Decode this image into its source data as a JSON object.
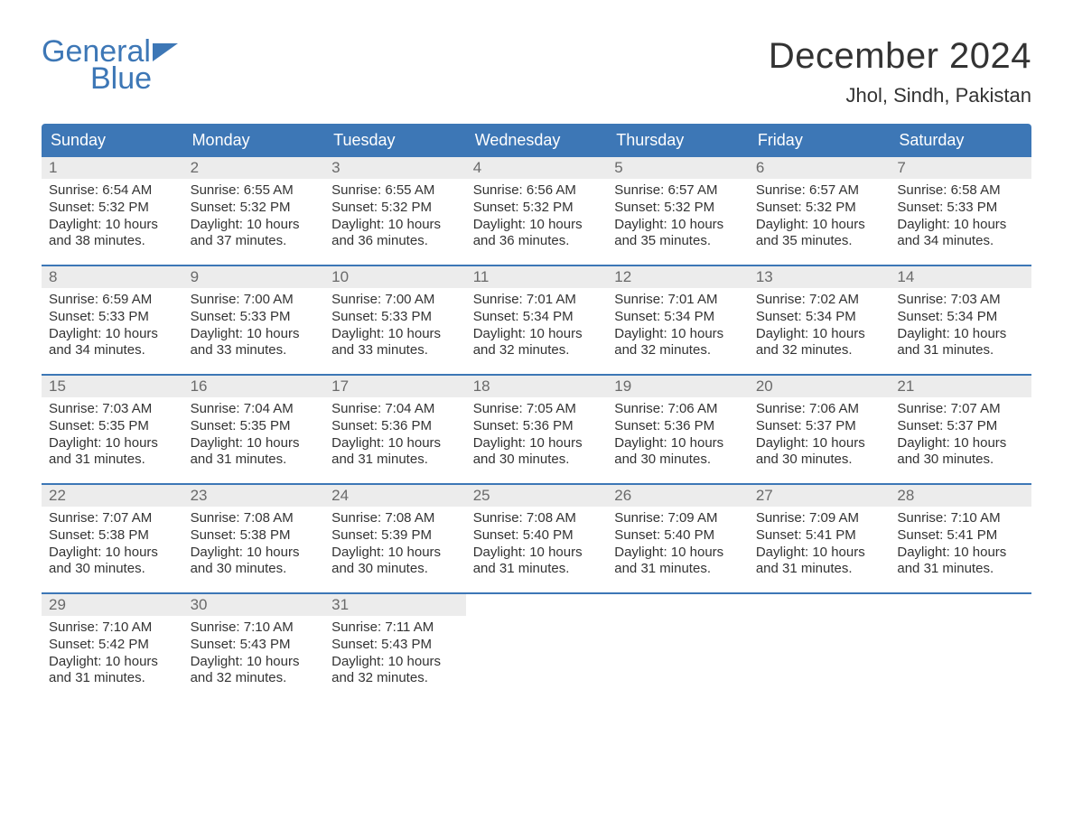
{
  "logo": {
    "line1": "General",
    "line2": "Blue",
    "icon_color": "#3d77b6"
  },
  "header": {
    "month_title": "December 2024",
    "location": "Jhol, Sindh, Pakistan"
  },
  "colors": {
    "brand": "#3d77b6",
    "header_bg": "#3d77b6",
    "header_text": "#ffffff",
    "daynum_bg": "#ececec",
    "daynum_text": "#6a6a6a",
    "body_text": "#333333",
    "row_divider": "#3d77b6"
  },
  "typography": {
    "month_title_fontsize": 40,
    "location_fontsize": 22,
    "weekday_fontsize": 18,
    "daynum_fontsize": 17,
    "daytext_fontsize": 15
  },
  "calendar": {
    "weekday_labels": [
      "Sunday",
      "Monday",
      "Tuesday",
      "Wednesday",
      "Thursday",
      "Friday",
      "Saturday"
    ],
    "weeks": [
      [
        {
          "day": "1",
          "sunrise": "Sunrise: 6:54 AM",
          "sunset": "Sunset: 5:32 PM",
          "dl1": "Daylight: 10 hours",
          "dl2": "and 38 minutes."
        },
        {
          "day": "2",
          "sunrise": "Sunrise: 6:55 AM",
          "sunset": "Sunset: 5:32 PM",
          "dl1": "Daylight: 10 hours",
          "dl2": "and 37 minutes."
        },
        {
          "day": "3",
          "sunrise": "Sunrise: 6:55 AM",
          "sunset": "Sunset: 5:32 PM",
          "dl1": "Daylight: 10 hours",
          "dl2": "and 36 minutes."
        },
        {
          "day": "4",
          "sunrise": "Sunrise: 6:56 AM",
          "sunset": "Sunset: 5:32 PM",
          "dl1": "Daylight: 10 hours",
          "dl2": "and 36 minutes."
        },
        {
          "day": "5",
          "sunrise": "Sunrise: 6:57 AM",
          "sunset": "Sunset: 5:32 PM",
          "dl1": "Daylight: 10 hours",
          "dl2": "and 35 minutes."
        },
        {
          "day": "6",
          "sunrise": "Sunrise: 6:57 AM",
          "sunset": "Sunset: 5:32 PM",
          "dl1": "Daylight: 10 hours",
          "dl2": "and 35 minutes."
        },
        {
          "day": "7",
          "sunrise": "Sunrise: 6:58 AM",
          "sunset": "Sunset: 5:33 PM",
          "dl1": "Daylight: 10 hours",
          "dl2": "and 34 minutes."
        }
      ],
      [
        {
          "day": "8",
          "sunrise": "Sunrise: 6:59 AM",
          "sunset": "Sunset: 5:33 PM",
          "dl1": "Daylight: 10 hours",
          "dl2": "and 34 minutes."
        },
        {
          "day": "9",
          "sunrise": "Sunrise: 7:00 AM",
          "sunset": "Sunset: 5:33 PM",
          "dl1": "Daylight: 10 hours",
          "dl2": "and 33 minutes."
        },
        {
          "day": "10",
          "sunrise": "Sunrise: 7:00 AM",
          "sunset": "Sunset: 5:33 PM",
          "dl1": "Daylight: 10 hours",
          "dl2": "and 33 minutes."
        },
        {
          "day": "11",
          "sunrise": "Sunrise: 7:01 AM",
          "sunset": "Sunset: 5:34 PM",
          "dl1": "Daylight: 10 hours",
          "dl2": "and 32 minutes."
        },
        {
          "day": "12",
          "sunrise": "Sunrise: 7:01 AM",
          "sunset": "Sunset: 5:34 PM",
          "dl1": "Daylight: 10 hours",
          "dl2": "and 32 minutes."
        },
        {
          "day": "13",
          "sunrise": "Sunrise: 7:02 AM",
          "sunset": "Sunset: 5:34 PM",
          "dl1": "Daylight: 10 hours",
          "dl2": "and 32 minutes."
        },
        {
          "day": "14",
          "sunrise": "Sunrise: 7:03 AM",
          "sunset": "Sunset: 5:34 PM",
          "dl1": "Daylight: 10 hours",
          "dl2": "and 31 minutes."
        }
      ],
      [
        {
          "day": "15",
          "sunrise": "Sunrise: 7:03 AM",
          "sunset": "Sunset: 5:35 PM",
          "dl1": "Daylight: 10 hours",
          "dl2": "and 31 minutes."
        },
        {
          "day": "16",
          "sunrise": "Sunrise: 7:04 AM",
          "sunset": "Sunset: 5:35 PM",
          "dl1": "Daylight: 10 hours",
          "dl2": "and 31 minutes."
        },
        {
          "day": "17",
          "sunrise": "Sunrise: 7:04 AM",
          "sunset": "Sunset: 5:36 PM",
          "dl1": "Daylight: 10 hours",
          "dl2": "and 31 minutes."
        },
        {
          "day": "18",
          "sunrise": "Sunrise: 7:05 AM",
          "sunset": "Sunset: 5:36 PM",
          "dl1": "Daylight: 10 hours",
          "dl2": "and 30 minutes."
        },
        {
          "day": "19",
          "sunrise": "Sunrise: 7:06 AM",
          "sunset": "Sunset: 5:36 PM",
          "dl1": "Daylight: 10 hours",
          "dl2": "and 30 minutes."
        },
        {
          "day": "20",
          "sunrise": "Sunrise: 7:06 AM",
          "sunset": "Sunset: 5:37 PM",
          "dl1": "Daylight: 10 hours",
          "dl2": "and 30 minutes."
        },
        {
          "day": "21",
          "sunrise": "Sunrise: 7:07 AM",
          "sunset": "Sunset: 5:37 PM",
          "dl1": "Daylight: 10 hours",
          "dl2": "and 30 minutes."
        }
      ],
      [
        {
          "day": "22",
          "sunrise": "Sunrise: 7:07 AM",
          "sunset": "Sunset: 5:38 PM",
          "dl1": "Daylight: 10 hours",
          "dl2": "and 30 minutes."
        },
        {
          "day": "23",
          "sunrise": "Sunrise: 7:08 AM",
          "sunset": "Sunset: 5:38 PM",
          "dl1": "Daylight: 10 hours",
          "dl2": "and 30 minutes."
        },
        {
          "day": "24",
          "sunrise": "Sunrise: 7:08 AM",
          "sunset": "Sunset: 5:39 PM",
          "dl1": "Daylight: 10 hours",
          "dl2": "and 30 minutes."
        },
        {
          "day": "25",
          "sunrise": "Sunrise: 7:08 AM",
          "sunset": "Sunset: 5:40 PM",
          "dl1": "Daylight: 10 hours",
          "dl2": "and 31 minutes."
        },
        {
          "day": "26",
          "sunrise": "Sunrise: 7:09 AM",
          "sunset": "Sunset: 5:40 PM",
          "dl1": "Daylight: 10 hours",
          "dl2": "and 31 minutes."
        },
        {
          "day": "27",
          "sunrise": "Sunrise: 7:09 AM",
          "sunset": "Sunset: 5:41 PM",
          "dl1": "Daylight: 10 hours",
          "dl2": "and 31 minutes."
        },
        {
          "day": "28",
          "sunrise": "Sunrise: 7:10 AM",
          "sunset": "Sunset: 5:41 PM",
          "dl1": "Daylight: 10 hours",
          "dl2": "and 31 minutes."
        }
      ],
      [
        {
          "day": "29",
          "sunrise": "Sunrise: 7:10 AM",
          "sunset": "Sunset: 5:42 PM",
          "dl1": "Daylight: 10 hours",
          "dl2": "and 31 minutes."
        },
        {
          "day": "30",
          "sunrise": "Sunrise: 7:10 AM",
          "sunset": "Sunset: 5:43 PM",
          "dl1": "Daylight: 10 hours",
          "dl2": "and 32 minutes."
        },
        {
          "day": "31",
          "sunrise": "Sunrise: 7:11 AM",
          "sunset": "Sunset: 5:43 PM",
          "dl1": "Daylight: 10 hours",
          "dl2": "and 32 minutes."
        },
        {
          "empty": true
        },
        {
          "empty": true
        },
        {
          "empty": true
        },
        {
          "empty": true
        }
      ]
    ]
  }
}
